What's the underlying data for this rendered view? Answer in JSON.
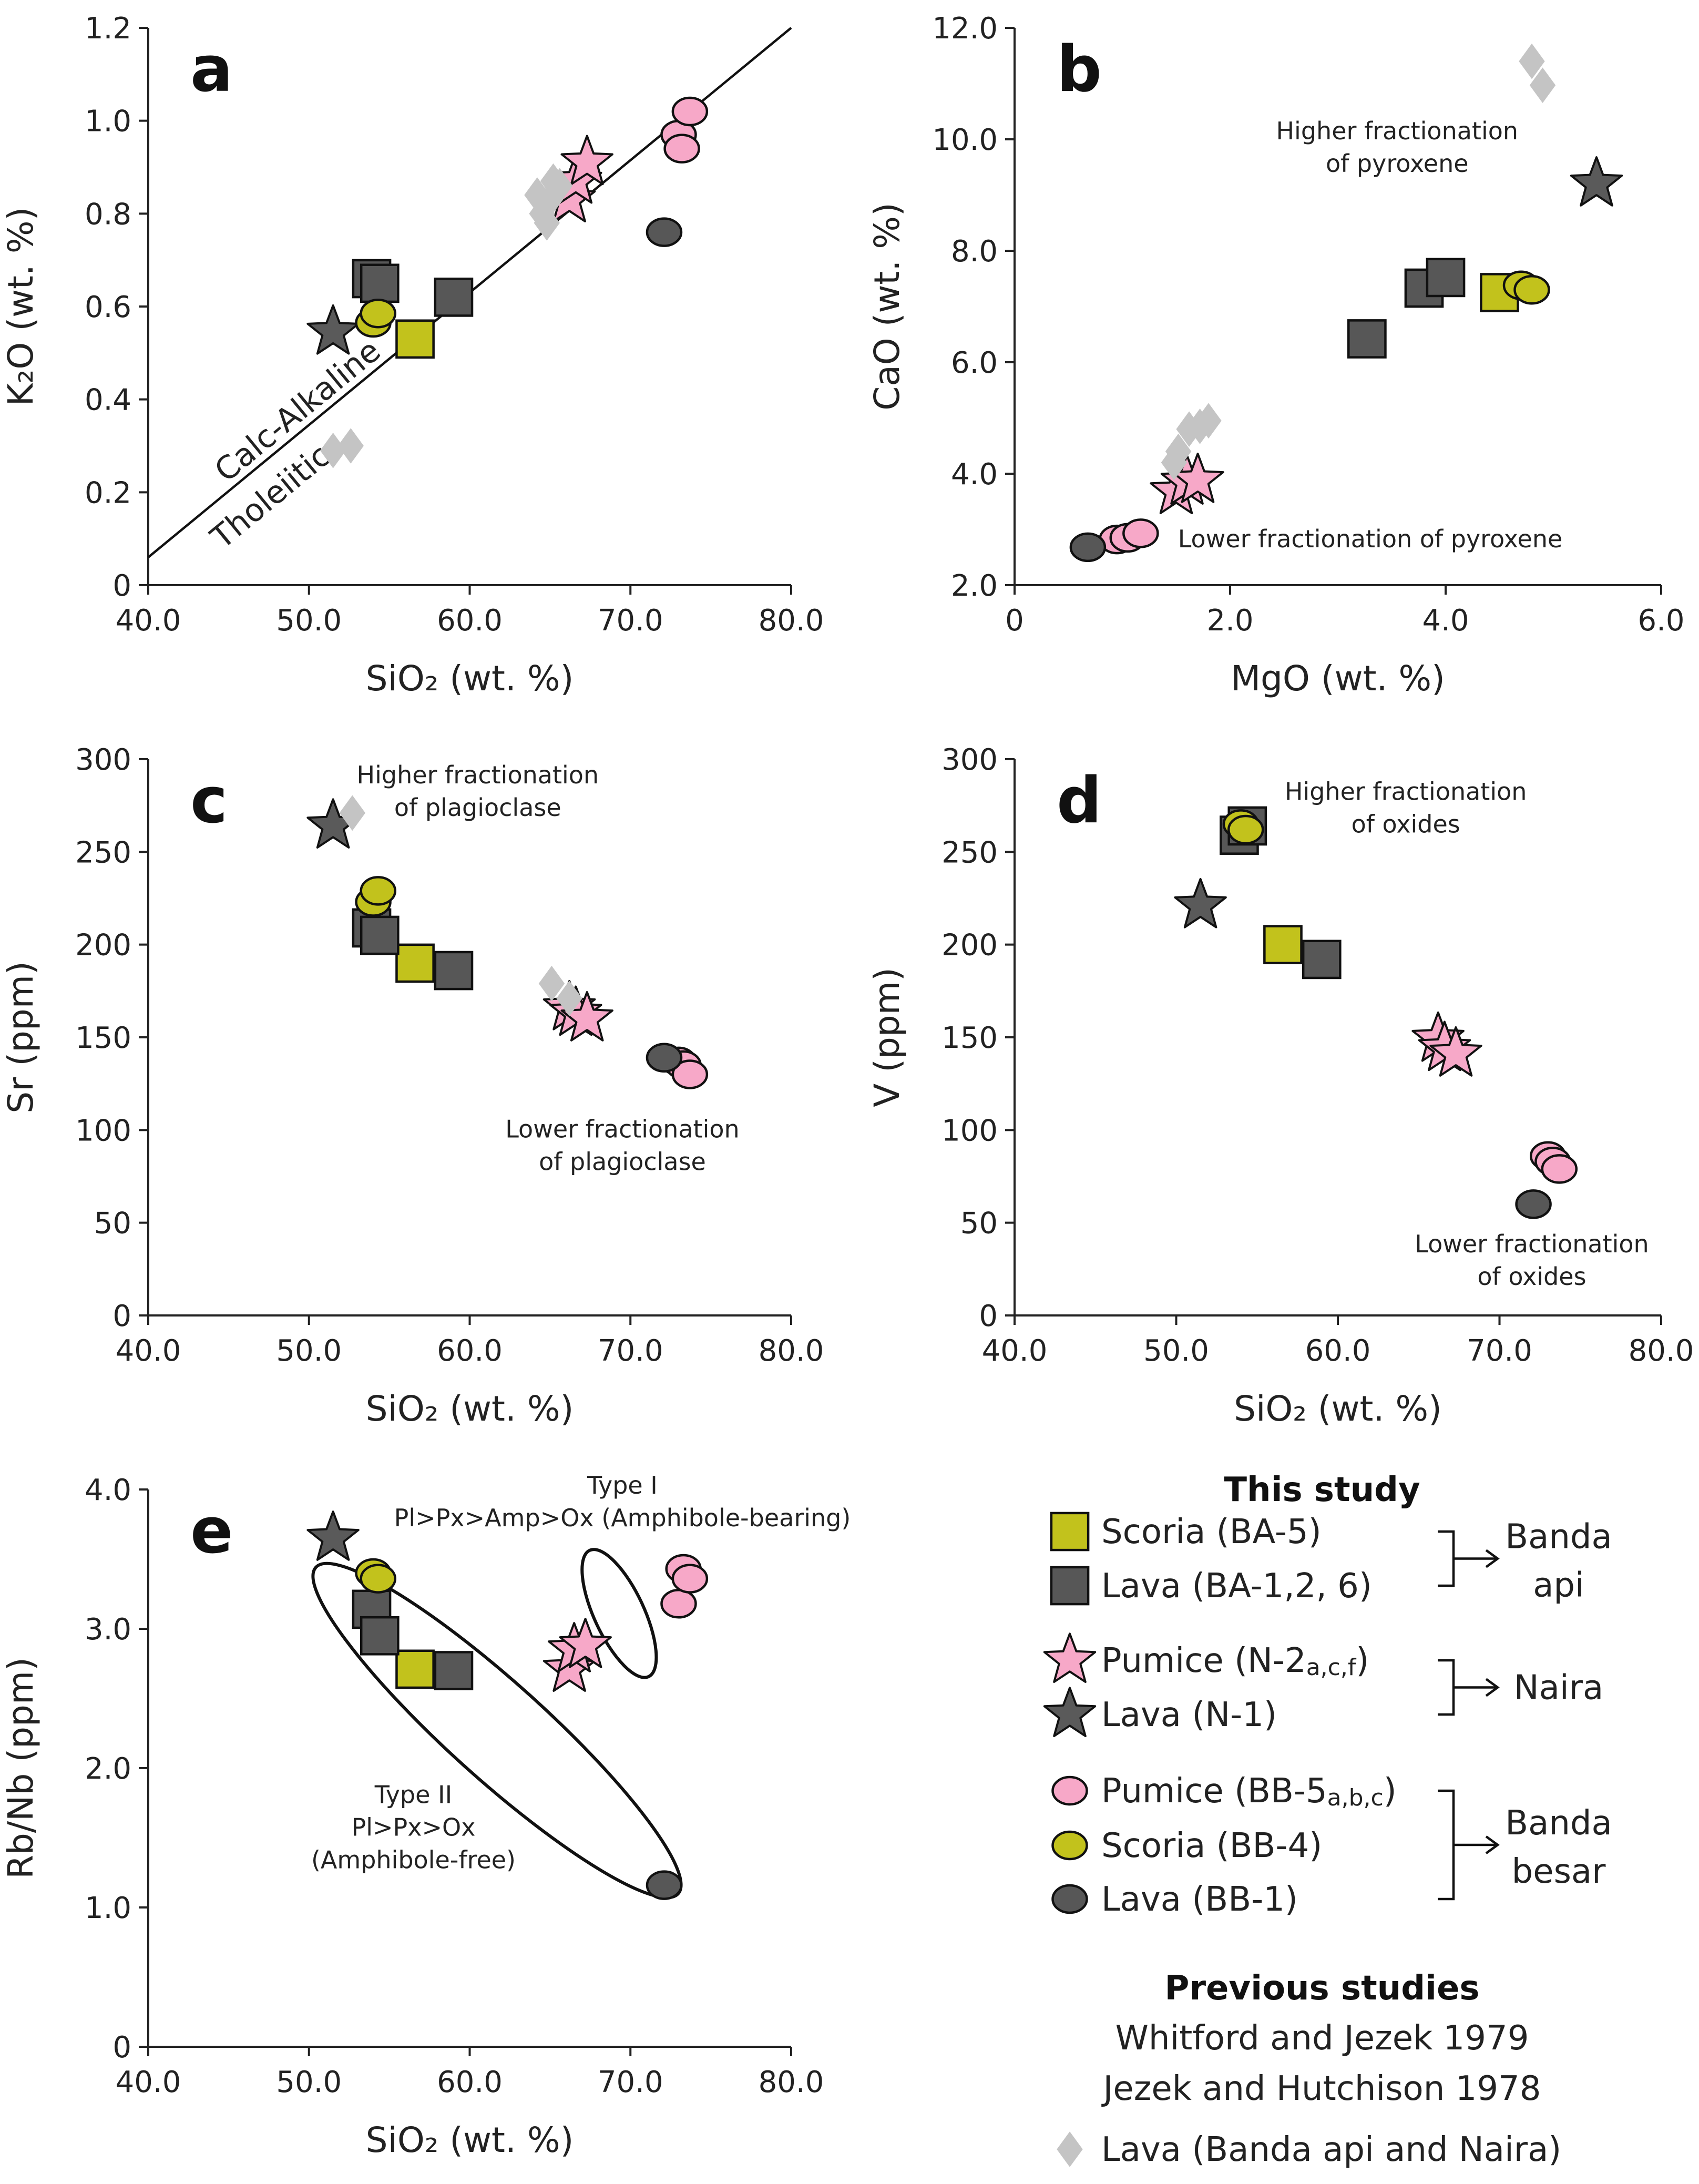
{
  "colors": {
    "scoria_ba": "#c2c21c",
    "lava_ba": "#575757",
    "pumice_n": "#f7a8c8",
    "lava_n": "#5a5a5a",
    "pumice_bb": "#f7a8c8",
    "scoria_bb": "#c2c21c",
    "lava_bb": "#575757",
    "previous": "#c4c4c4",
    "outline": "#111111"
  },
  "chart_data": [
    {
      "id": "a",
      "type": "scatter",
      "letter": "a",
      "xlabel": "SiO₂ (wt. %)",
      "ylabel": "K₂O (wt. %)",
      "xlim": [
        40,
        80
      ],
      "ylim": [
        0,
        1.2
      ],
      "xticks": [
        "40.0",
        "50.0",
        "60.0",
        "70.0",
        "80.0"
      ],
      "yticks": [
        "0",
        "0.2",
        "0.4",
        "0.6",
        "0.8",
        "1.0",
        "1.2"
      ],
      "xtickvals": [
        40,
        50,
        60,
        70,
        80
      ],
      "ytickvals": [
        0,
        0.2,
        0.4,
        0.6,
        0.8,
        1.0,
        1.2
      ],
      "divider_line": {
        "from": [
          40,
          0.06
        ],
        "to": [
          80,
          1.2
        ]
      },
      "line_labels": [
        {
          "text": "Calc-Alkaline",
          "side": "above"
        },
        {
          "text": "Tholeiitic",
          "side": "below"
        }
      ],
      "series": [
        {
          "name": "Scoria (BA-5)",
          "marker": "square",
          "color_key": "scoria_ba",
          "points": [
            [
              56.6,
              0.53
            ]
          ]
        },
        {
          "name": "Lava (BA-1,2,6)",
          "marker": "square",
          "color_key": "lava_ba",
          "points": [
            [
              53.9,
              0.66
            ],
            [
              54.4,
              0.65
            ],
            [
              59.0,
              0.62
            ]
          ]
        },
        {
          "name": "Pumice (N-2a,c,f)",
          "marker": "star",
          "color_key": "pumice_n",
          "points": [
            [
              66.2,
              0.83
            ],
            [
              66.6,
              0.87
            ],
            [
              67.3,
              0.91
            ]
          ]
        },
        {
          "name": "Lava (N-1)",
          "marker": "star",
          "color_key": "lava_n",
          "points": [
            [
              51.5,
              0.545
            ]
          ]
        },
        {
          "name": "Pumice (BB-5a,b,c)",
          "marker": "circle",
          "color_key": "pumice_bb",
          "points": [
            [
              73.0,
              0.97
            ],
            [
              73.2,
              0.94
            ],
            [
              73.7,
              1.02
            ]
          ]
        },
        {
          "name": "Scoria (BB-4)",
          "marker": "circle",
          "color_key": "scoria_bb",
          "points": [
            [
              54.0,
              0.565
            ],
            [
              54.3,
              0.585
            ]
          ]
        },
        {
          "name": "Lava (BB-1)",
          "marker": "circle",
          "color_key": "lava_bb",
          "points": [
            [
              72.1,
              0.76
            ]
          ]
        },
        {
          "name": "Lava (Banda api and Naira)",
          "marker": "diamond",
          "color_key": "previous",
          "points": [
            [
              51.5,
              0.29
            ],
            [
              52.6,
              0.3
            ],
            [
              64.2,
              0.84
            ],
            [
              64.5,
              0.8
            ],
            [
              64.8,
              0.78
            ],
            [
              65.0,
              0.83
            ],
            [
              65.2,
              0.87
            ],
            [
              65.6,
              0.86
            ]
          ]
        }
      ]
    },
    {
      "id": "b",
      "type": "scatter",
      "letter": "b",
      "xlabel": "MgO (wt. %)",
      "ylabel": "CaO (wt. %)",
      "xlim": [
        0,
        6
      ],
      "ylim": [
        2,
        12
      ],
      "xticks": [
        "0",
        "2.0",
        "4.0",
        "6.0"
      ],
      "yticks": [
        "2.0",
        "4.0",
        "6.0",
        "8.0",
        "10.0",
        "12.0"
      ],
      "xtickvals": [
        0,
        2,
        4,
        6
      ],
      "ytickvals": [
        2,
        4,
        6,
        8,
        10,
        12
      ],
      "annotations": [
        {
          "lines": [
            "Higher fractionation",
            "of pyroxene"
          ],
          "x": 3.55,
          "y": 10.0
        },
        {
          "lines": [
            "Lower fractionation of pyroxene"
          ],
          "x": 3.3,
          "y": 2.68
        }
      ],
      "series": [
        {
          "name": "Scoria (BA-5)",
          "marker": "square",
          "color_key": "scoria_ba",
          "points": [
            [
              4.5,
              7.25
            ]
          ]
        },
        {
          "name": "Lava (BA-1,2,6)",
          "marker": "square",
          "color_key": "lava_ba",
          "points": [
            [
              3.27,
              6.42
            ],
            [
              3.8,
              7.33
            ],
            [
              4.0,
              7.52
            ]
          ]
        },
        {
          "name": "Pumice (N-2a,c,f)",
          "marker": "star",
          "color_key": "pumice_n",
          "points": [
            [
              1.5,
              3.68
            ],
            [
              1.6,
              3.85
            ],
            [
              1.7,
              3.88
            ]
          ]
        },
        {
          "name": "Lava (N-1)",
          "marker": "star",
          "color_key": "lava_n",
          "points": [
            [
              5.4,
              9.2
            ]
          ]
        },
        {
          "name": "Pumice (BB-5a,b,c)",
          "marker": "circle",
          "color_key": "pumice_bb",
          "points": [
            [
              0.95,
              2.82
            ],
            [
              1.05,
              2.85
            ],
            [
              1.17,
              2.93
            ]
          ]
        },
        {
          "name": "Scoria (BB-4)",
          "marker": "circle",
          "color_key": "scoria_bb",
          "points": [
            [
              4.7,
              7.38
            ],
            [
              4.8,
              7.3
            ]
          ]
        },
        {
          "name": "Lava (BB-1)",
          "marker": "circle",
          "color_key": "lava_bb",
          "points": [
            [
              0.68,
              2.68
            ]
          ]
        },
        {
          "name": "Lava (Banda api and Naira)",
          "marker": "diamond",
          "color_key": "previous",
          "points": [
            [
              1.48,
              4.2
            ],
            [
              1.52,
              4.4
            ],
            [
              1.62,
              4.8
            ],
            [
              1.72,
              4.85
            ],
            [
              1.8,
              4.95
            ],
            [
              4.8,
              11.4
            ],
            [
              4.9,
              10.97
            ]
          ]
        }
      ]
    },
    {
      "id": "c",
      "type": "scatter",
      "letter": "c",
      "xlabel": "SiO₂ (wt. %)",
      "ylabel": "Sr (ppm)",
      "xlim": [
        40,
        80
      ],
      "ylim": [
        0,
        300
      ],
      "xticks": [
        "40.0",
        "50.0",
        "60.0",
        "70.0",
        "80.0"
      ],
      "yticks": [
        "0",
        "50",
        "100",
        "150",
        "200",
        "250",
        "300"
      ],
      "xtickvals": [
        40,
        50,
        60,
        70,
        80
      ],
      "ytickvals": [
        0,
        50,
        100,
        150,
        200,
        250,
        300
      ],
      "annotations": [
        {
          "lines": [
            "Higher fractionation",
            "of plagioclase"
          ],
          "x": 60.5,
          "y": 287
        },
        {
          "lines": [
            "Lower fractionation",
            "of plagioclase"
          ],
          "x": 69.5,
          "y": 96
        }
      ],
      "series": [
        {
          "name": "Scoria (BA-5)",
          "marker": "square",
          "color_key": "scoria_ba",
          "points": [
            [
              56.6,
              190
            ]
          ]
        },
        {
          "name": "Lava (BA-1,2,6)",
          "marker": "square",
          "color_key": "lava_ba",
          "points": [
            [
              53.9,
              209
            ],
            [
              54.4,
              205
            ],
            [
              59.0,
              186
            ]
          ]
        },
        {
          "name": "Pumice (N-2a,c,f)",
          "marker": "star",
          "color_key": "pumice_n",
          "points": [
            [
              66.2,
              166
            ],
            [
              66.6,
              163
            ],
            [
              67.3,
              160
            ]
          ]
        },
        {
          "name": "Lava (N-1)",
          "marker": "star",
          "color_key": "lava_n",
          "points": [
            [
              51.5,
              264
            ]
          ]
        },
        {
          "name": "Pumice (BB-5a,b,c)",
          "marker": "circle",
          "color_key": "pumice_bb",
          "points": [
            [
              73.0,
              137
            ],
            [
              73.3,
              135
            ],
            [
              73.7,
              130
            ]
          ]
        },
        {
          "name": "Scoria (BB-4)",
          "marker": "circle",
          "color_key": "scoria_bb",
          "points": [
            [
              54.0,
              223
            ],
            [
              54.3,
              229
            ]
          ]
        },
        {
          "name": "Lava (BB-1)",
          "marker": "circle",
          "color_key": "lava_bb",
          "points": [
            [
              72.1,
              139
            ]
          ]
        },
        {
          "name": "Lava (Banda api and Naira)",
          "marker": "diamond",
          "color_key": "previous",
          "points": [
            [
              52.7,
              271
            ],
            [
              65.1,
              179
            ],
            [
              66.2,
              171
            ]
          ]
        }
      ]
    },
    {
      "id": "d",
      "type": "scatter",
      "letter": "d",
      "xlabel": "SiO₂ (wt. %)",
      "ylabel": "V (ppm)",
      "xlim": [
        40,
        80
      ],
      "ylim": [
        0,
        300
      ],
      "xticks": [
        "40.0",
        "50.0",
        "60.0",
        "70.0",
        "80.0"
      ],
      "yticks": [
        "0",
        "50",
        "100",
        "150",
        "200",
        "250",
        "300"
      ],
      "xtickvals": [
        40,
        50,
        60,
        70,
        80
      ],
      "ytickvals": [
        0,
        50,
        100,
        150,
        200,
        250,
        300
      ],
      "annotations": [
        {
          "lines": [
            "Higher fractionation",
            "of oxides"
          ],
          "x": 64.2,
          "y": 278
        },
        {
          "lines": [
            "Lower fractionation",
            "of oxides"
          ],
          "x": 72.0,
          "y": 34
        }
      ],
      "series": [
        {
          "name": "Scoria (BA-5)",
          "marker": "square",
          "color_key": "scoria_ba",
          "points": [
            [
              56.6,
              200
            ]
          ]
        },
        {
          "name": "Lava (BA-1,2,6)",
          "marker": "square",
          "color_key": "lava_ba",
          "points": [
            [
              53.9,
              259
            ],
            [
              54.4,
              264
            ],
            [
              59.0,
              192
            ]
          ]
        },
        {
          "name": "Pumice (N-2a,c,f)",
          "marker": "star",
          "color_key": "pumice_n",
          "points": [
            [
              66.2,
              149
            ],
            [
              66.6,
              144
            ],
            [
              67.3,
              141
            ]
          ]
        },
        {
          "name": "Lava (N-1)",
          "marker": "star",
          "color_key": "lava_n",
          "points": [
            [
              51.5,
              221
            ]
          ]
        },
        {
          "name": "Pumice (BB-5a,b,c)",
          "marker": "circle",
          "color_key": "pumice_bb",
          "points": [
            [
              73.0,
              86
            ],
            [
              73.3,
              83
            ],
            [
              73.7,
              79
            ]
          ]
        },
        {
          "name": "Scoria (BB-4)",
          "marker": "circle",
          "color_key": "scoria_bb",
          "points": [
            [
              54.0,
              265
            ],
            [
              54.3,
              262
            ]
          ]
        },
        {
          "name": "Lava (BB-1)",
          "marker": "circle",
          "color_key": "lava_bb",
          "points": [
            [
              72.1,
              60
            ]
          ]
        }
      ]
    },
    {
      "id": "e",
      "type": "scatter",
      "letter": "e",
      "xlabel": "SiO₂ (wt. %)",
      "ylabel": "Rb/Nb (ppm)",
      "xlim": [
        40,
        80
      ],
      "ylim": [
        0,
        4
      ],
      "xticks": [
        "40.0",
        "50.0",
        "60.0",
        "70.0",
        "80.0"
      ],
      "yticks": [
        "0",
        "1.0",
        "2.0",
        "3.0",
        "4.0"
      ],
      "xtickvals": [
        40,
        50,
        60,
        70,
        80
      ],
      "ytickvals": [
        0,
        1,
        2,
        3,
        4
      ],
      "ellipses": [
        {
          "label": "Type II",
          "cx": 61.7,
          "cy": 2.27,
          "rx": 3.0,
          "ry": 1.75,
          "rot": -48
        },
        {
          "label": "Type I",
          "cx": 69.3,
          "cy": 3.11,
          "rx": 1.55,
          "ry": 0.5,
          "rot": -25
        }
      ],
      "annotations": [
        {
          "lines": [
            "Type I",
            "Pl>Px>Amp>Ox (Amphibole-bearing)"
          ],
          "x": 69.5,
          "y": 3.97
        },
        {
          "lines": [
            "Type II",
            "Pl>Px>Ox",
            "(Amphibole-free)"
          ],
          "x": 56.5,
          "y": 1.75
        }
      ],
      "series": [
        {
          "name": "Scoria (BA-5)",
          "marker": "square",
          "color_key": "scoria_ba",
          "points": [
            [
              56.6,
              2.71
            ]
          ]
        },
        {
          "name": "Lava (BA-1,2,6)",
          "marker": "square",
          "color_key": "lava_ba",
          "points": [
            [
              53.9,
              3.14
            ],
            [
              54.4,
              2.95
            ],
            [
              59.0,
              2.7
            ]
          ]
        },
        {
          "name": "Pumice (N-2a,c,f)",
          "marker": "star",
          "color_key": "pumice_n",
          "points": [
            [
              66.2,
              2.71
            ],
            [
              66.5,
              2.85
            ],
            [
              67.2,
              2.88
            ]
          ]
        },
        {
          "name": "Lava (N-1)",
          "marker": "star",
          "color_key": "lava_n",
          "points": [
            [
              51.5,
              3.65
            ]
          ]
        },
        {
          "name": "Pumice (BB-5a,b,c)",
          "marker": "circle",
          "color_key": "pumice_bb",
          "points": [
            [
              73.0,
              3.18
            ],
            [
              73.3,
              3.43
            ],
            [
              73.7,
              3.36
            ]
          ]
        },
        {
          "name": "Scoria (BB-4)",
          "marker": "circle",
          "color_key": "scoria_bb",
          "points": [
            [
              54.0,
              3.4
            ],
            [
              54.3,
              3.36
            ]
          ]
        },
        {
          "name": "Lava (BB-1)",
          "marker": "circle",
          "color_key": "lava_bb",
          "points": [
            [
              72.1,
              1.16
            ]
          ]
        }
      ]
    }
  ],
  "legend": {
    "heading_this": "This study",
    "groups": [
      {
        "volcano": [
          "Banda",
          "api"
        ],
        "items": [
          {
            "label": "Scoria (BA-5)",
            "marker": "square",
            "color_key": "scoria_ba"
          },
          {
            "label": "Lava (BA-1,2, 6)",
            "marker": "square",
            "color_key": "lava_ba"
          }
        ]
      },
      {
        "volcano": [
          "Naira"
        ],
        "items": [
          {
            "label": "Pumice (N-2",
            "sub": "a,c,f",
            "tail": ")",
            "marker": "star",
            "color_key": "pumice_n"
          },
          {
            "label": "Lava (N-1)",
            "marker": "star",
            "color_key": "lava_n"
          }
        ]
      },
      {
        "volcano": [
          "Banda",
          "besar"
        ],
        "items": [
          {
            "label": "Pumice (BB-5",
            "sub": "a,b,c",
            "tail": ")",
            "marker": "circle",
            "color_key": "pumice_bb"
          },
          {
            "label": "Scoria (BB-4)",
            "marker": "circle",
            "color_key": "scoria_bb"
          },
          {
            "label": "Lava (BB-1)",
            "marker": "circle",
            "color_key": "lava_bb"
          }
        ]
      }
    ],
    "heading_prev": "Previous studies",
    "refs": [
      "Whitford and Jezek 1979",
      "Jezek and Hutchison 1978"
    ],
    "prev_item": {
      "label": "Lava (Banda api and Naira)",
      "marker": "diamond",
      "color_key": "previous"
    }
  }
}
